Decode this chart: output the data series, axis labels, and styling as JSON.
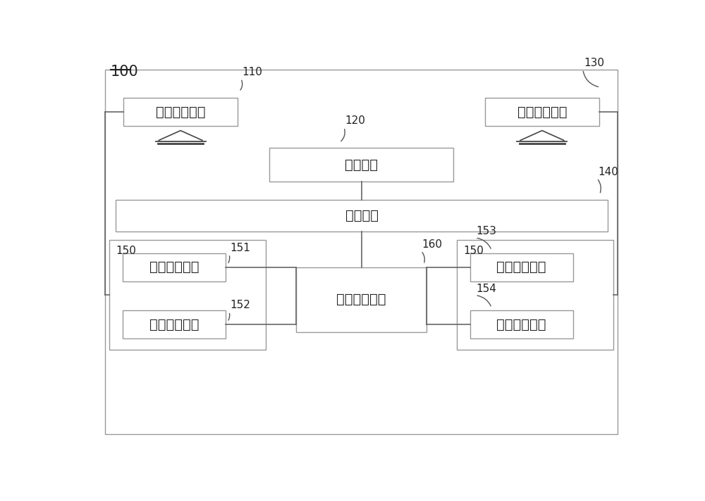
{
  "bg_color": "#ffffff",
  "outer_edge_color": "#888888",
  "box_edge_color": "#999999",
  "dashed_edge_color": "#aaaaaa",
  "line_color": "#666666",
  "text_color": "#222222",
  "label_100": "100",
  "label_110": "110",
  "label_120": "120",
  "label_130": "130",
  "label_140": "140",
  "label_150a": "150",
  "label_150b": "150",
  "label_151": "151",
  "label_152": "152",
  "label_153": "153",
  "label_154": "154",
  "label_160": "160",
  "box_110_text": "第一吸盘移載",
  "box_120_text": "切割装置",
  "box_130_text": "第二吸盘移載",
  "box_140_text": "工控装置",
  "box_151_text": "第一升降電機",
  "box_152_text": "第一移動電機",
  "box_153_text": "第二升降電機",
  "box_154_text": "第二移動電機",
  "box_160_text": "電機控制装置",
  "font_size_main": 14,
  "font_size_label": 11,
  "font_size_100": 15
}
